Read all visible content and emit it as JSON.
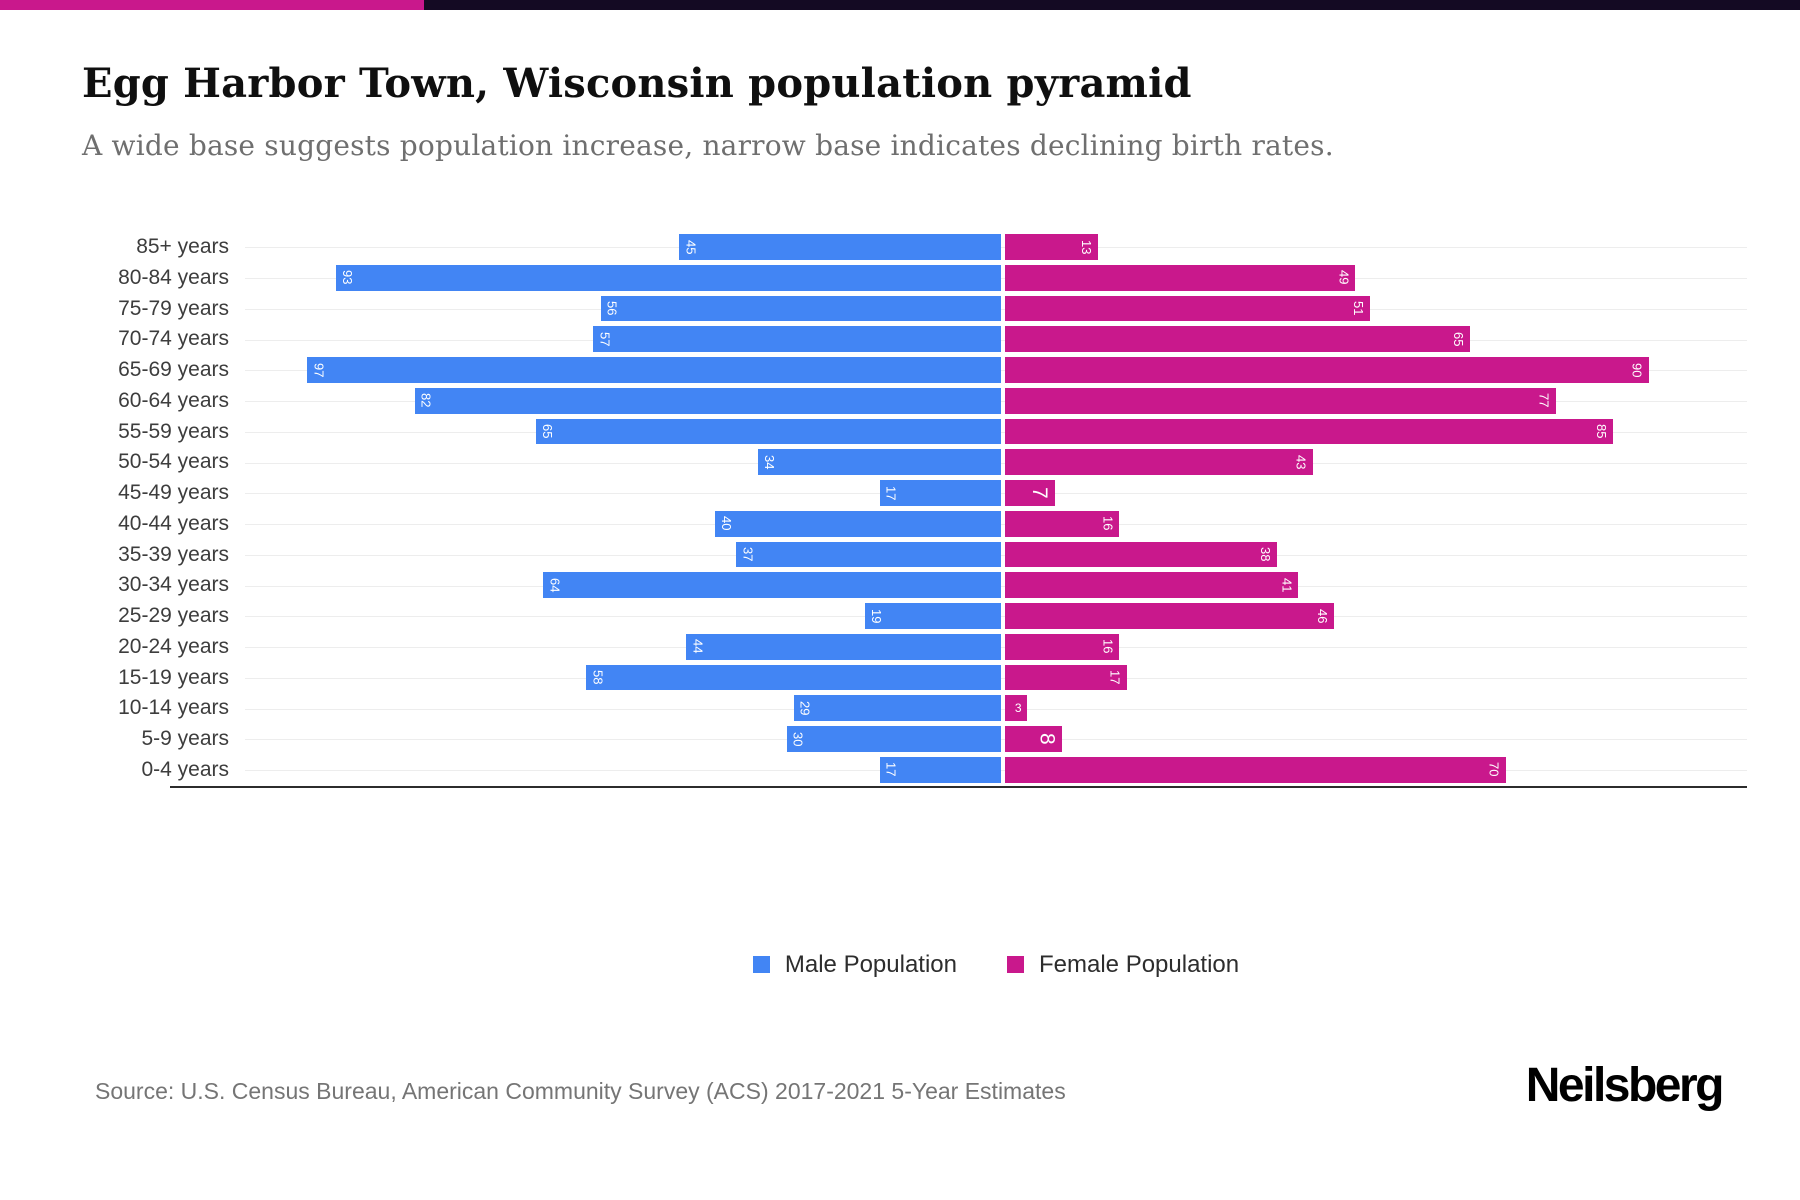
{
  "title": "Egg Harbor Town, Wisconsin population pyramid",
  "subtitle": "A wide base suggests population increase, narrow base indicates declining birth rates.",
  "accent_colors": {
    "strip_pink": "#c9188c",
    "strip_dark": "#140a23"
  },
  "legend": [
    {
      "label": "Male Population",
      "color": "#4285f4"
    },
    {
      "label": "Female Population",
      "color": "#c9188c"
    }
  ],
  "source": "Source: U.S. Census Bureau, American Community Survey (ACS) 2017-2021 5-Year Estimates",
  "brand": "Neilsberg",
  "chart_data": {
    "type": "bar",
    "variant": "population-pyramid",
    "orientation": "horizontal",
    "title": "Egg Harbor Town, Wisconsin population pyramid",
    "categories": [
      "85+ years",
      "80-84 years",
      "75-79 years",
      "70-74 years",
      "65-69 years",
      "60-64 years",
      "55-59 years",
      "50-54 years",
      "45-49 years",
      "40-44 years",
      "35-39 years",
      "30-34 years",
      "25-29 years",
      "20-24 years",
      "15-19 years",
      "10-14 years",
      "5-9 years",
      "0-4 years"
    ],
    "series": [
      {
        "name": "Male Population",
        "side": "left",
        "color": "#4285f4",
        "values": [
          45,
          93,
          56,
          57,
          97,
          82,
          65,
          34,
          17,
          40,
          37,
          64,
          19,
          44,
          58,
          29,
          30,
          17
        ]
      },
      {
        "name": "Female Population",
        "side": "right",
        "color": "#c9188c",
        "values": [
          13,
          49,
          51,
          65,
          90,
          77,
          85,
          43,
          7,
          16,
          38,
          41,
          46,
          16,
          17,
          3,
          8,
          70
        ]
      }
    ],
    "value_labels": "inside-outer-end, white, rotated 90deg",
    "xmax_each_side": 106,
    "grid": "horizontal light gridline per row",
    "legend_position": "bottom-center"
  }
}
